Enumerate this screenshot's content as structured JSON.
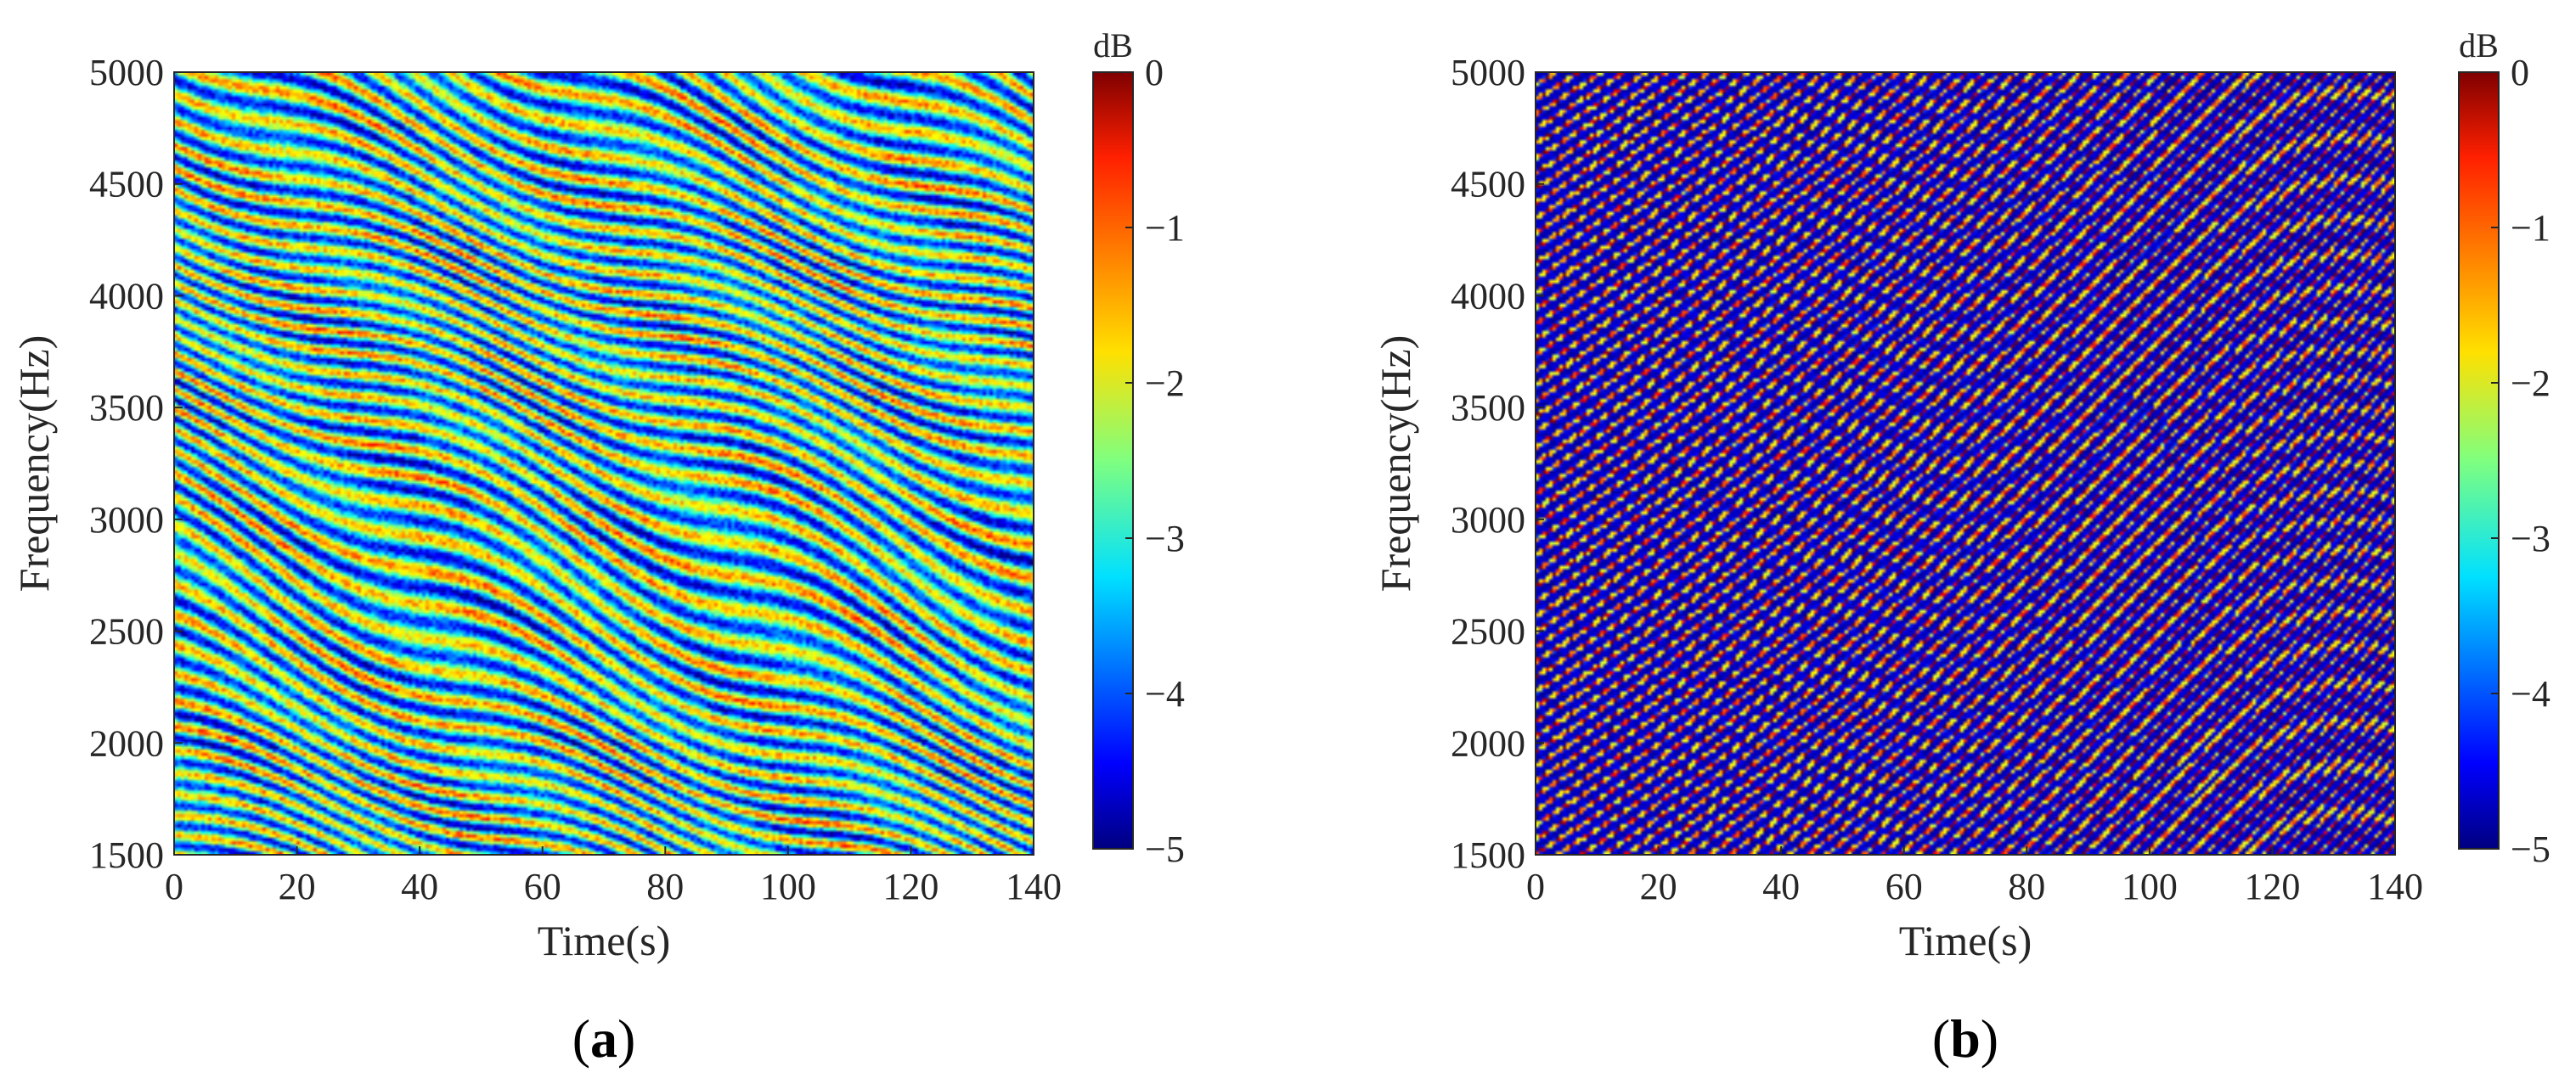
{
  "chart_data": [
    {
      "type": "heatmap",
      "panel_label": "(a)",
      "xlabel": "Time(s)",
      "ylabel": "Frequency(Hz)",
      "xlim": [
        0,
        140
      ],
      "ylim": [
        1500,
        5000
      ],
      "xticks": [
        0,
        20,
        40,
        60,
        80,
        100,
        120,
        140
      ],
      "yticks": [
        1500,
        2000,
        2500,
        3000,
        3500,
        4000,
        4500,
        5000
      ],
      "colorbar": {
        "label": "dB",
        "range": [
          -5,
          0
        ],
        "ticks": [
          "0",
          "−1",
          "−2",
          "−3",
          "−4",
          "−5"
        ],
        "colormap": "jet"
      },
      "pattern": "diagonal striations descending in frequency with time, irregular, mostly blue background with cyan/yellow/red streaks"
    },
    {
      "type": "heatmap",
      "panel_label": "(b)",
      "xlabel": "Time(s)",
      "ylabel": "Frequency(Hz)",
      "xlim": [
        0,
        140
      ],
      "ylim": [
        1500,
        5000
      ],
      "xticks": [
        0,
        20,
        40,
        60,
        80,
        100,
        120,
        140
      ],
      "yticks": [
        1500,
        2000,
        2500,
        3000,
        3500,
        4000,
        4500,
        5000
      ],
      "colorbar": {
        "label": "dB",
        "range": [
          -5,
          0
        ],
        "ticks": [
          "0",
          "−1",
          "−2",
          "−3",
          "−4",
          "−5"
        ],
        "colormap": "jet"
      },
      "pattern": "dense regular diagonal striations rising in frequency with time, dark blue background"
    }
  ]
}
